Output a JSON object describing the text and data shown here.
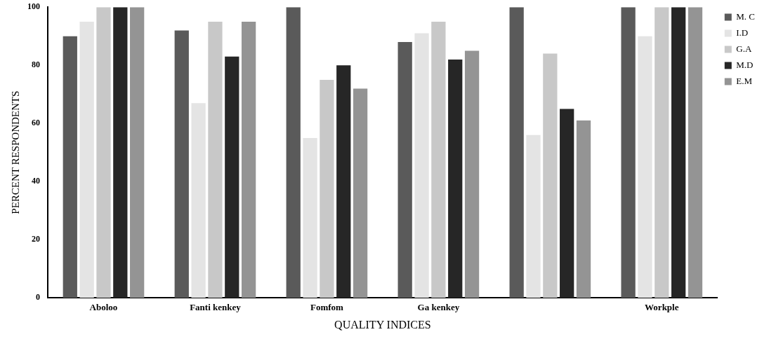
{
  "chart_data": {
    "type": "bar",
    "xlabel": "QUALITY INDICES",
    "ylabel": "PERCENT RESPONDENTS",
    "categories": [
      "Aboloo",
      "Fanti kenkey",
      "Fomfom",
      "Ga kenkey",
      null,
      "Workple"
    ],
    "series": [
      {
        "name": "M. C",
        "color": "#5a5a5a",
        "values": [
          90,
          92,
          100,
          88,
          100,
          100
        ]
      },
      {
        "name": "I.D",
        "color": "#e4e4e4",
        "values": [
          95,
          67,
          55,
          91,
          56,
          90
        ]
      },
      {
        "name": "G.A",
        "color": "#c8c8c8",
        "values": [
          100,
          95,
          75,
          95,
          84,
          100
        ]
      },
      {
        "name": "M.D",
        "color": "#262626",
        "values": [
          100,
          83,
          80,
          82,
          65,
          100
        ]
      },
      {
        "name": "E.M",
        "color": "#949494",
        "values": [
          100,
          95,
          72,
          85,
          61,
          100
        ]
      }
    ],
    "ylim": [
      0,
      100
    ],
    "yticks": [
      0,
      20,
      40,
      60,
      80,
      100
    ],
    "grid": false,
    "legend": "top right"
  }
}
